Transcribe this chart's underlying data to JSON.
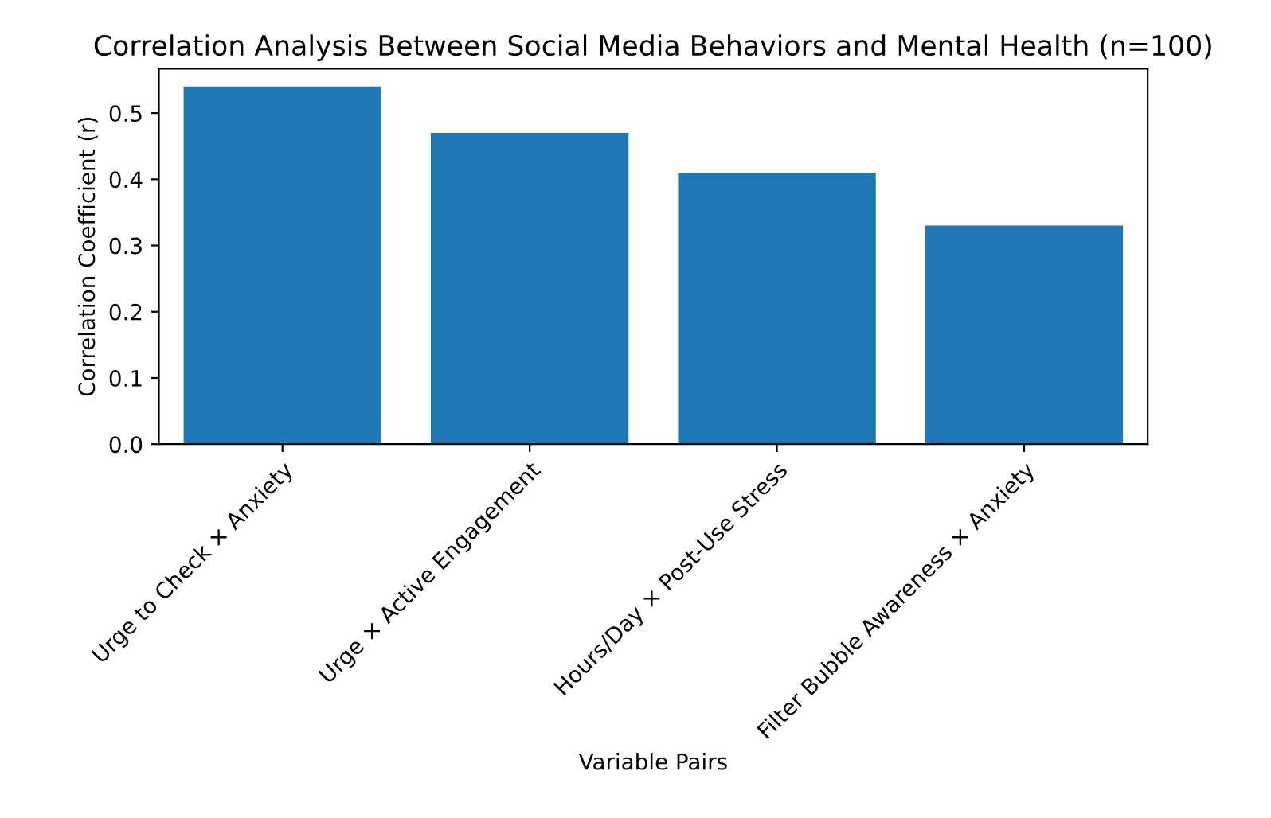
{
  "chart_data": {
    "type": "bar",
    "title": "Correlation Analysis Between Social Media Behaviors and Mental Health (n=100)",
    "xlabel": "Variable Pairs",
    "ylabel": "Correlation Coefficient (r)",
    "categories": [
      "Urge to Check × Anxiety",
      "Urge × Active Engagement",
      "Hours/Day × Post-Use Stress",
      "Filter Bubble Awareness × Anxiety"
    ],
    "values": [
      0.54,
      0.47,
      0.41,
      0.33
    ],
    "color": "#1f77b4",
    "ylim": [
      0,
      0.567
    ],
    "yticks": [
      {
        "value": 0,
        "label": "0.0"
      },
      0.1,
      0.2,
      0.3,
      0.4,
      0.5
    ]
  }
}
